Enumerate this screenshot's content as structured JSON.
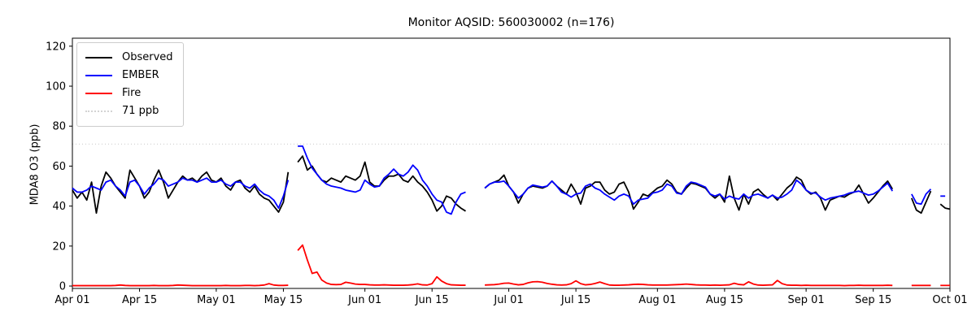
{
  "chart_data": {
    "type": "line",
    "title": "Monitor AQSID: 560030002 (n=176)",
    "aqsid": "560030002",
    "n": 176,
    "ylabel": "MDA8 O3 (ppb)",
    "xlabel": "",
    "x_unit": "day index from Apr 01",
    "xlim": [
      0,
      183
    ],
    "ylim": [
      -1.2,
      124
    ],
    "grid": false,
    "legend_position": "upper left",
    "y_ticks": [
      0,
      20,
      40,
      60,
      80,
      100,
      120
    ],
    "x_ticks": [
      {
        "day": 0,
        "label": "Apr 01"
      },
      {
        "day": 14,
        "label": "Apr 15"
      },
      {
        "day": 30,
        "label": "May 01"
      },
      {
        "day": 44,
        "label": "May 15"
      },
      {
        "day": 61,
        "label": "Jun 01"
      },
      {
        "day": 75,
        "label": "Jun 15"
      },
      {
        "day": 91,
        "label": "Jul 01"
      },
      {
        "day": 105,
        "label": "Jul 15"
      },
      {
        "day": 122,
        "label": "Aug 01"
      },
      {
        "day": 136,
        "label": "Aug 15"
      },
      {
        "day": 153,
        "label": "Sep 01"
      },
      {
        "day": 167,
        "label": "Sep 15"
      },
      {
        "day": 183,
        "label": "Oct 01"
      }
    ],
    "threshold": {
      "value": 71,
      "label": "71 ppb",
      "color": "#d3d3d3",
      "style": "dotted"
    },
    "missing_dates": [
      "May 17",
      "Jun 23",
      "Jun 24",
      "Jun 25",
      "Sep 20",
      "Sep 21",
      "Sep 22",
      "Sep 28"
    ],
    "series": [
      {
        "name": "Observed",
        "color": "#000000",
        "values": [
          48,
          44,
          47,
          43,
          52,
          36.5,
          50,
          57,
          54,
          50,
          47,
          44,
          58,
          54,
          50,
          44,
          47,
          53,
          58,
          52,
          44,
          48,
          52,
          55,
          53,
          54,
          52,
          55,
          57,
          53,
          52,
          54,
          50,
          48,
          52,
          53,
          49,
          47,
          50,
          46,
          44,
          43,
          40,
          37,
          42,
          57,
          null,
          62,
          65,
          58,
          60,
          56,
          53,
          52,
          54,
          53,
          52,
          55,
          54,
          53,
          55,
          62,
          52,
          50,
          50,
          53,
          55,
          55,
          56,
          53,
          52,
          55,
          52,
          50,
          47,
          43,
          37.5,
          40,
          45,
          44,
          41,
          39,
          37.5,
          null,
          null,
          null,
          49,
          51,
          52,
          53,
          55.5,
          50,
          47,
          41.5,
          46,
          49,
          50,
          49.5,
          49,
          50,
          52.5,
          50,
          48,
          46,
          51,
          47,
          41,
          49,
          50,
          52,
          52,
          48,
          46,
          47,
          51,
          52,
          47,
          38.5,
          42,
          46,
          45,
          47,
          49,
          50,
          53,
          51,
          47,
          46,
          49,
          51.5,
          51,
          50,
          49,
          46,
          44,
          46,
          42,
          55,
          44,
          38,
          46,
          41,
          47,
          48.5,
          46,
          44,
          45.5,
          43,
          46,
          49,
          51,
          54.5,
          53,
          48,
          46,
          47,
          44,
          38,
          43,
          44,
          45,
          44.5,
          46,
          47,
          50.5,
          46,
          41.5,
          44,
          47,
          50,
          52.5,
          48.5,
          null,
          null,
          null,
          44,
          38,
          36.5,
          42,
          47.5,
          null,
          41,
          39,
          38.5
        ]
      },
      {
        "name": "EMBER",
        "color": "#0000ff",
        "values": [
          49,
          47,
          47,
          48,
          50,
          49,
          48,
          52,
          53,
          50,
          48,
          45,
          52,
          53,
          50,
          46,
          49,
          51,
          54,
          53,
          50,
          51,
          52,
          54,
          53,
          53,
          52,
          53,
          54,
          52,
          52,
          53,
          51,
          50,
          52,
          52,
          50,
          49,
          51,
          48,
          46,
          45,
          43,
          39,
          45,
          53,
          null,
          70,
          70,
          64,
          59,
          56,
          53,
          51,
          50,
          49.5,
          49,
          48,
          47.5,
          47,
          48,
          53,
          51,
          49.5,
          50,
          54,
          56,
          58.5,
          56,
          55,
          57,
          60.5,
          58,
          53,
          50,
          46,
          43,
          42,
          37,
          36,
          42,
          46,
          47,
          null,
          null,
          null,
          49,
          51,
          52,
          52,
          52.5,
          50,
          47,
          44,
          46,
          49,
          50.5,
          50,
          49.5,
          50,
          52.5,
          50,
          47,
          46,
          44.5,
          46,
          46.5,
          50,
          51,
          49,
          48,
          46,
          44.5,
          43,
          45,
          46,
          45,
          41,
          43,
          43.5,
          44,
          46.5,
          47,
          48,
          51,
          50,
          46.5,
          46,
          50,
          52,
          51.5,
          50.5,
          49.5,
          46,
          45,
          46,
          43.5,
          45,
          44,
          43.5,
          46,
          44,
          45.5,
          46,
          45,
          44,
          45.5,
          44,
          44.5,
          46,
          48,
          53,
          51,
          48,
          46.5,
          46.5,
          44.5,
          43,
          44,
          44.5,
          45,
          45.5,
          46.5,
          47,
          47.5,
          46.5,
          45.5,
          46,
          47.5,
          49.5,
          51.5,
          47.5,
          null,
          null,
          null,
          46,
          41.5,
          41,
          46,
          48.5,
          null,
          45,
          45,
          null
        ]
      },
      {
        "name": "Fire",
        "color": "#ff0000",
        "values": [
          0.2,
          0.2,
          0.2,
          0.2,
          0.2,
          0.2,
          0.2,
          0.2,
          0.2,
          0.3,
          0.5,
          0.3,
          0.2,
          0.2,
          0.2,
          0.2,
          0.2,
          0.3,
          0.2,
          0.2,
          0.2,
          0.3,
          0.5,
          0.4,
          0.3,
          0.2,
          0.2,
          0.2,
          0.2,
          0.2,
          0.2,
          0.2,
          0.3,
          0.2,
          0.2,
          0.2,
          0.3,
          0.3,
          0.2,
          0.3,
          0.5,
          1.2,
          0.5,
          0.3,
          0.3,
          0.4,
          null,
          17.8,
          20.5,
          13,
          6.3,
          7,
          3,
          1.5,
          0.8,
          0.7,
          0.8,
          1.9,
          1.5,
          1.0,
          0.8,
          0.8,
          0.6,
          0.5,
          0.5,
          0.6,
          0.5,
          0.4,
          0.4,
          0.4,
          0.5,
          0.7,
          1.1,
          0.6,
          0.5,
          1.2,
          4.6,
          2.5,
          1.2,
          0.6,
          0.5,
          0.4,
          0.4,
          null,
          null,
          null,
          0.5,
          0.6,
          0.7,
          1.0,
          1.4,
          1.5,
          1.0,
          0.6,
          0.8,
          1.6,
          2.1,
          2.2,
          1.9,
          1.3,
          0.9,
          0.6,
          0.5,
          0.6,
          1.2,
          2.6,
          1.2,
          0.6,
          0.8,
          1.3,
          2.0,
          1.2,
          0.5,
          0.4,
          0.4,
          0.5,
          0.6,
          0.8,
          0.9,
          0.8,
          0.6,
          0.5,
          0.5,
          0.5,
          0.5,
          0.6,
          0.7,
          0.8,
          1.0,
          0.8,
          0.6,
          0.5,
          0.5,
          0.4,
          0.5,
          0.4,
          0.5,
          0.6,
          1.4,
          0.8,
          0.6,
          2.1,
          1.0,
          0.5,
          0.4,
          0.5,
          0.6,
          2.8,
          1.2,
          0.5,
          0.4,
          0.4,
          0.3,
          0.4,
          0.3,
          0.3,
          0.3,
          0.3,
          0.3,
          0.3,
          0.3,
          0.2,
          0.3,
          0.3,
          0.4,
          0.3,
          0.3,
          0.3,
          0.3,
          0.3,
          0.4,
          0.3,
          null,
          null,
          null,
          0.3,
          0.3,
          0.3,
          0.3,
          0.3,
          null,
          0.3,
          0.3,
          0.3
        ]
      }
    ]
  },
  "legend": {
    "items": [
      {
        "label": "Observed",
        "color": "#000000",
        "style": "solid"
      },
      {
        "label": "EMBER",
        "color": "#0000ff",
        "style": "solid"
      },
      {
        "label": "Fire",
        "color": "#ff0000",
        "style": "solid"
      },
      {
        "label": "71 ppb",
        "color": "#d3d3d3",
        "style": "dotted"
      }
    ]
  },
  "axes": {
    "spine_color": "#000000",
    "tick_color": "#000000",
    "background": "#ffffff"
  }
}
